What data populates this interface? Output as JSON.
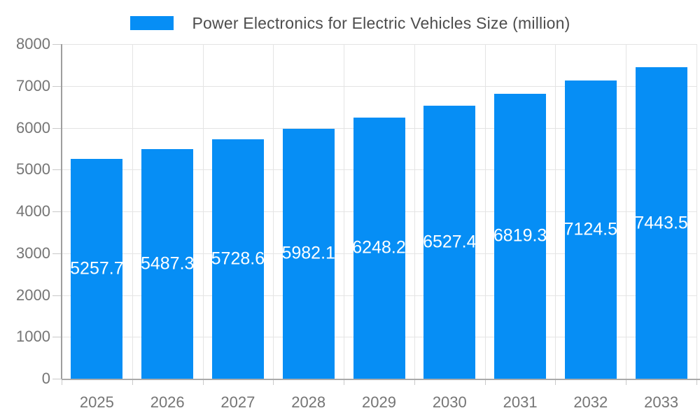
{
  "chart_data": {
    "type": "bar",
    "title": "Power Electronics for Electric Vehicles Size (million)",
    "categories": [
      "2025",
      "2026",
      "2027",
      "2028",
      "2029",
      "2030",
      "2031",
      "2032",
      "2033"
    ],
    "values": [
      5257.7,
      5487.3,
      5728.6,
      5982.1,
      6248.2,
      6527.4,
      6819.3,
      7124.5,
      7443.5
    ],
    "value_labels": [
      "5257.7",
      "5487.3",
      "5728.6",
      "5982.1",
      "6248.2",
      "6527.4",
      "6819.3",
      "7124.5",
      "7443.5"
    ],
    "xlabel": "",
    "ylabel": "",
    "ylim": [
      0,
      8000
    ],
    "yticks": [
      0,
      1000,
      2000,
      3000,
      4000,
      5000,
      6000,
      7000,
      8000
    ],
    "grid": true,
    "legend_position": "top",
    "bar_color": "#068EF5",
    "value_label_color": "#FFFFFF"
  },
  "colors": {
    "background": "#FFFFFF",
    "bar": "#068EF5",
    "axis_line": "#9E9E9E",
    "baseline": "#AAAAAA",
    "gridline": "#E4E4E4",
    "tick": "#C9C9C9",
    "axis_text": "#757575",
    "title_text": "#4D4D4D"
  }
}
